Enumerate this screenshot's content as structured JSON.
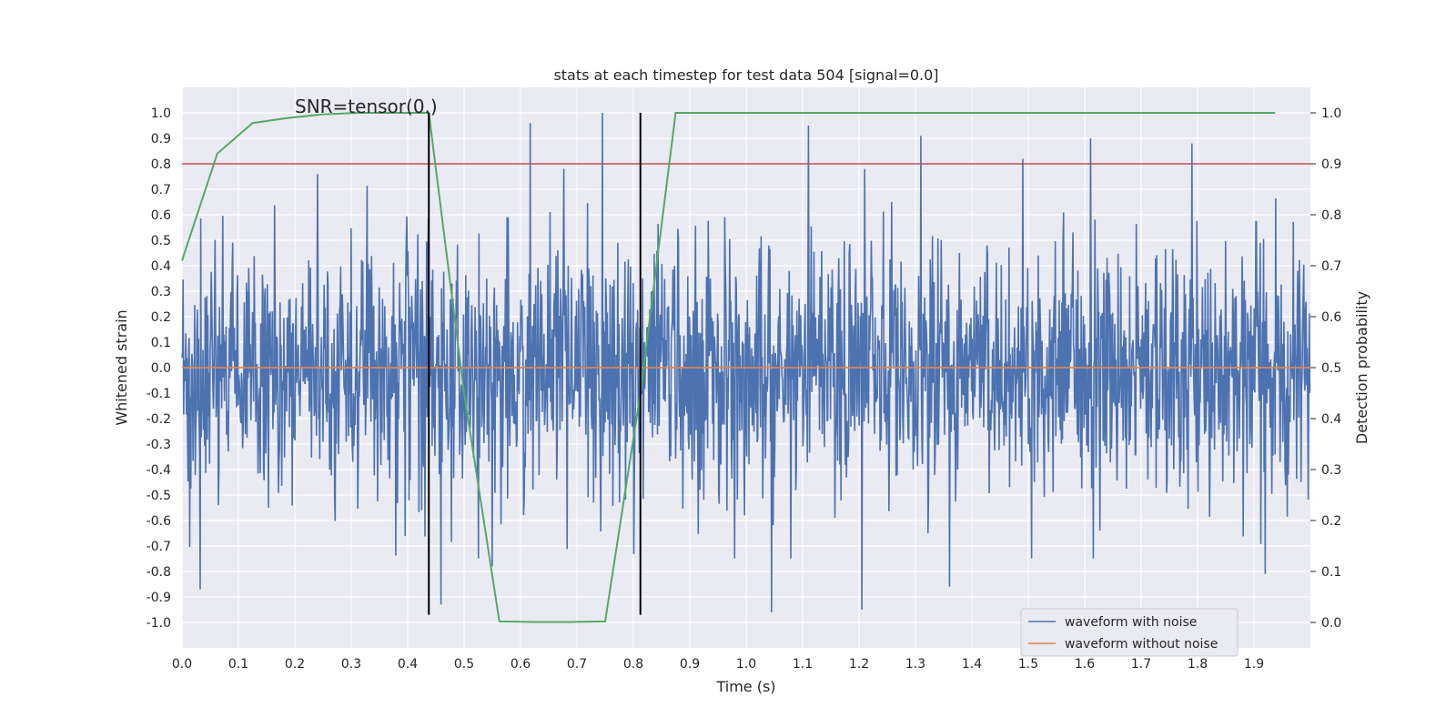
{
  "chart_data": {
    "type": "line",
    "title": "stats at each timestep for test data 504 [signal=0.0]",
    "xlabel": "Time (s)",
    "ylabel": "Whitened strain",
    "y2label": "Detection probability",
    "xlim": [
      0.0,
      2.0
    ],
    "ylim": [
      -1.1,
      1.1
    ],
    "y2lim": [
      -0.05,
      1.05
    ],
    "xticks": [
      "0.0",
      "0.1",
      "0.2",
      "0.3",
      "0.4",
      "0.5",
      "0.6",
      "0.7",
      "0.8",
      "0.9",
      "1.0",
      "1.1",
      "1.2",
      "1.3",
      "1.4",
      "1.5",
      "1.6",
      "1.7",
      "1.8",
      "1.9"
    ],
    "yticks": [
      "1.0",
      "0.9",
      "0.8",
      "0.7",
      "0.6",
      "0.5",
      "0.4",
      "0.3",
      "0.2",
      "0.1",
      "0.0",
      "-0.1",
      "-0.2",
      "-0.3",
      "-0.4",
      "-0.5",
      "-0.6",
      "-0.7",
      "-0.8",
      "-0.9",
      "-1.0"
    ],
    "y2ticks": [
      "1.0",
      "0.9",
      "0.8",
      "0.7",
      "0.6",
      "0.5",
      "0.4",
      "0.3",
      "0.2",
      "0.1",
      "0.0"
    ],
    "grid": true,
    "legend_position": "lower-right",
    "annotation": "SNR=tensor(0.)",
    "series": [
      {
        "name": "waveform with noise",
        "color": "#4c72b0",
        "axis": "left",
        "kind": "noise",
        "samples": 2048,
        "x_range": [
          0.0,
          2.0
        ],
        "y_range": [
          -0.96,
          1.0
        ],
        "peaks": [
          [
            0.745,
            1.0
          ],
          [
            0.617,
            0.96
          ],
          [
            1.11,
            0.95
          ],
          [
            1.31,
            0.91
          ],
          [
            1.61,
            0.9
          ],
          [
            1.79,
            0.88
          ],
          [
            1.49,
            0.82
          ],
          [
            0.24,
            0.76
          ]
        ],
        "troughs": [
          [
            1.045,
            -0.96
          ],
          [
            1.205,
            -0.95
          ],
          [
            0.459,
            -0.93
          ],
          [
            0.032,
            -0.87
          ],
          [
            1.36,
            -0.86
          ],
          [
            1.92,
            -0.81
          ],
          [
            0.55,
            -0.78
          ]
        ]
      },
      {
        "name": "waveform without noise",
        "color": "#dd8452",
        "axis": "left",
        "x": [
          0.0,
          2.0
        ],
        "y": [
          0.0,
          0.0
        ]
      },
      {
        "name": "",
        "color": "#55a868",
        "axis": "right",
        "x": [
          0.0,
          0.0625,
          0.125,
          0.1875,
          0.25,
          0.3125,
          0.375,
          0.4375,
          0.5,
          0.5625,
          0.625,
          0.6875,
          0.75,
          0.8125,
          0.875,
          0.9375,
          1.0,
          1.25,
          1.5,
          1.75,
          1.9375
        ],
        "y": [
          0.71,
          0.92,
          0.98,
          0.99,
          0.997,
          1.0,
          1.0,
          1.0,
          0.45,
          0.002,
          0.001,
          0.001,
          0.002,
          0.45,
          1.0,
          1.0,
          1.0,
          1.0,
          1.0,
          1.0,
          1.0
        ]
      }
    ],
    "hlines": [
      {
        "axis": "left",
        "y": 0.8,
        "color": "#c44e52"
      }
    ],
    "vlines": [
      {
        "x": 0.4375,
        "y_from": -0.97,
        "y_to": 1.0,
        "color": "#000000"
      },
      {
        "x": 0.8125,
        "y_from": -0.97,
        "y_to": 1.0,
        "color": "#000000"
      }
    ]
  }
}
